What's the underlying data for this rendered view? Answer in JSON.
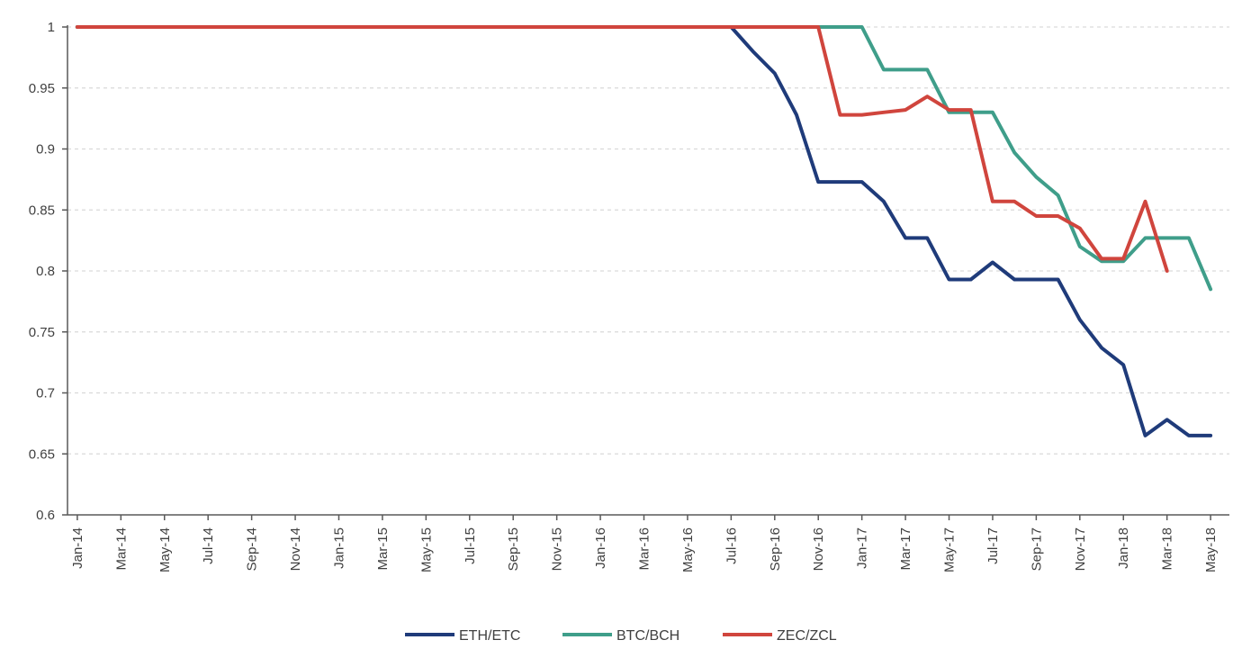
{
  "chart_data": {
    "type": "line",
    "title": "",
    "xlabel": "",
    "ylabel": "",
    "ylim": [
      0.6,
      1
    ],
    "yticks": [
      0.6,
      0.65,
      0.7,
      0.75,
      0.8,
      0.85,
      0.9,
      0.95,
      1
    ],
    "ytick_labels": [
      "0.6",
      "0.65",
      "0.7",
      "0.75",
      "0.8",
      "0.85",
      "0.9",
      "0.95",
      "1"
    ],
    "xtick_labels": [
      "Jan-14",
      "Mar-14",
      "May-14",
      "Jul-14",
      "Sep-14",
      "Nov-14",
      "Jan-15",
      "Mar-15",
      "May-15",
      "Jul-15",
      "Sep-15",
      "Nov-15",
      "Jan-16",
      "Mar-16",
      "May-16",
      "Jul-16",
      "Sep-16",
      "Nov-16",
      "Jan-17",
      "Mar-17",
      "May-17",
      "Jul-17",
      "Sep-17",
      "Nov-17",
      "Jan-18",
      "Mar-18",
      "May-18"
    ],
    "x_unit": "month",
    "grid": "horizontal dashed",
    "legend_position": "bottom-center",
    "series": [
      {
        "name": "ETH/ETC",
        "color": "#1f3b7a",
        "points": [
          [
            "Jan-14",
            1
          ],
          [
            "Jul-16",
            1
          ],
          [
            "Aug-16",
            0.98
          ],
          [
            "Sep-16",
            0.962
          ],
          [
            "Oct-16",
            0.928
          ],
          [
            "Nov-16",
            0.873
          ],
          [
            "Dec-16",
            0.873
          ],
          [
            "Jan-17",
            0.873
          ],
          [
            "Feb-17",
            0.857
          ],
          [
            "Mar-17",
            0.827
          ],
          [
            "Apr-17",
            0.827
          ],
          [
            "May-17",
            0.793
          ],
          [
            "Jun-17",
            0.793
          ],
          [
            "Jul-17",
            0.807
          ],
          [
            "Aug-17",
            0.793
          ],
          [
            "Sep-17",
            0.793
          ],
          [
            "Oct-17",
            0.793
          ],
          [
            "Nov-17",
            0.76
          ],
          [
            "Dec-17",
            0.737
          ],
          [
            "Jan-18",
            0.723
          ],
          [
            "Feb-18",
            0.665
          ],
          [
            "Mar-18",
            0.678
          ],
          [
            "Apr-18",
            0.665
          ],
          [
            "May-18",
            0.665
          ]
        ]
      },
      {
        "name": "BTC/BCH",
        "color": "#3f9e8a",
        "points": [
          [
            "Jan-14",
            1
          ],
          [
            "Jan-17",
            1
          ],
          [
            "Feb-17",
            0.965
          ],
          [
            "Mar-17",
            0.965
          ],
          [
            "Apr-17",
            0.965
          ],
          [
            "May-17",
            0.93
          ],
          [
            "Jun-17",
            0.93
          ],
          [
            "Jul-17",
            0.93
          ],
          [
            "Aug-17",
            0.897
          ],
          [
            "Sep-17",
            0.877
          ],
          [
            "Oct-17",
            0.862
          ],
          [
            "Nov-17",
            0.82
          ],
          [
            "Dec-17",
            0.808
          ],
          [
            "Jan-18",
            0.808
          ],
          [
            "Feb-18",
            0.827
          ],
          [
            "Mar-18",
            0.827
          ],
          [
            "Apr-18",
            0.827
          ],
          [
            "May-18",
            0.785
          ]
        ]
      },
      {
        "name": "ZEC/ZCL",
        "color": "#d0453d",
        "points": [
          [
            "Jan-14",
            1
          ],
          [
            "Nov-16",
            1
          ],
          [
            "Dec-16",
            0.928
          ],
          [
            "Jan-17",
            0.928
          ],
          [
            "Feb-17",
            0.93
          ],
          [
            "Mar-17",
            0.932
          ],
          [
            "Apr-17",
            0.943
          ],
          [
            "May-17",
            0.932
          ],
          [
            "Jun-17",
            0.932
          ],
          [
            "Jul-17",
            0.857
          ],
          [
            "Aug-17",
            0.857
          ],
          [
            "Sep-17",
            0.845
          ],
          [
            "Oct-17",
            0.845
          ],
          [
            "Nov-17",
            0.835
          ],
          [
            "Dec-17",
            0.81
          ],
          [
            "Jan-18",
            0.81
          ],
          [
            "Feb-18",
            0.857
          ],
          [
            "Mar-18",
            0.8
          ]
        ]
      }
    ]
  }
}
